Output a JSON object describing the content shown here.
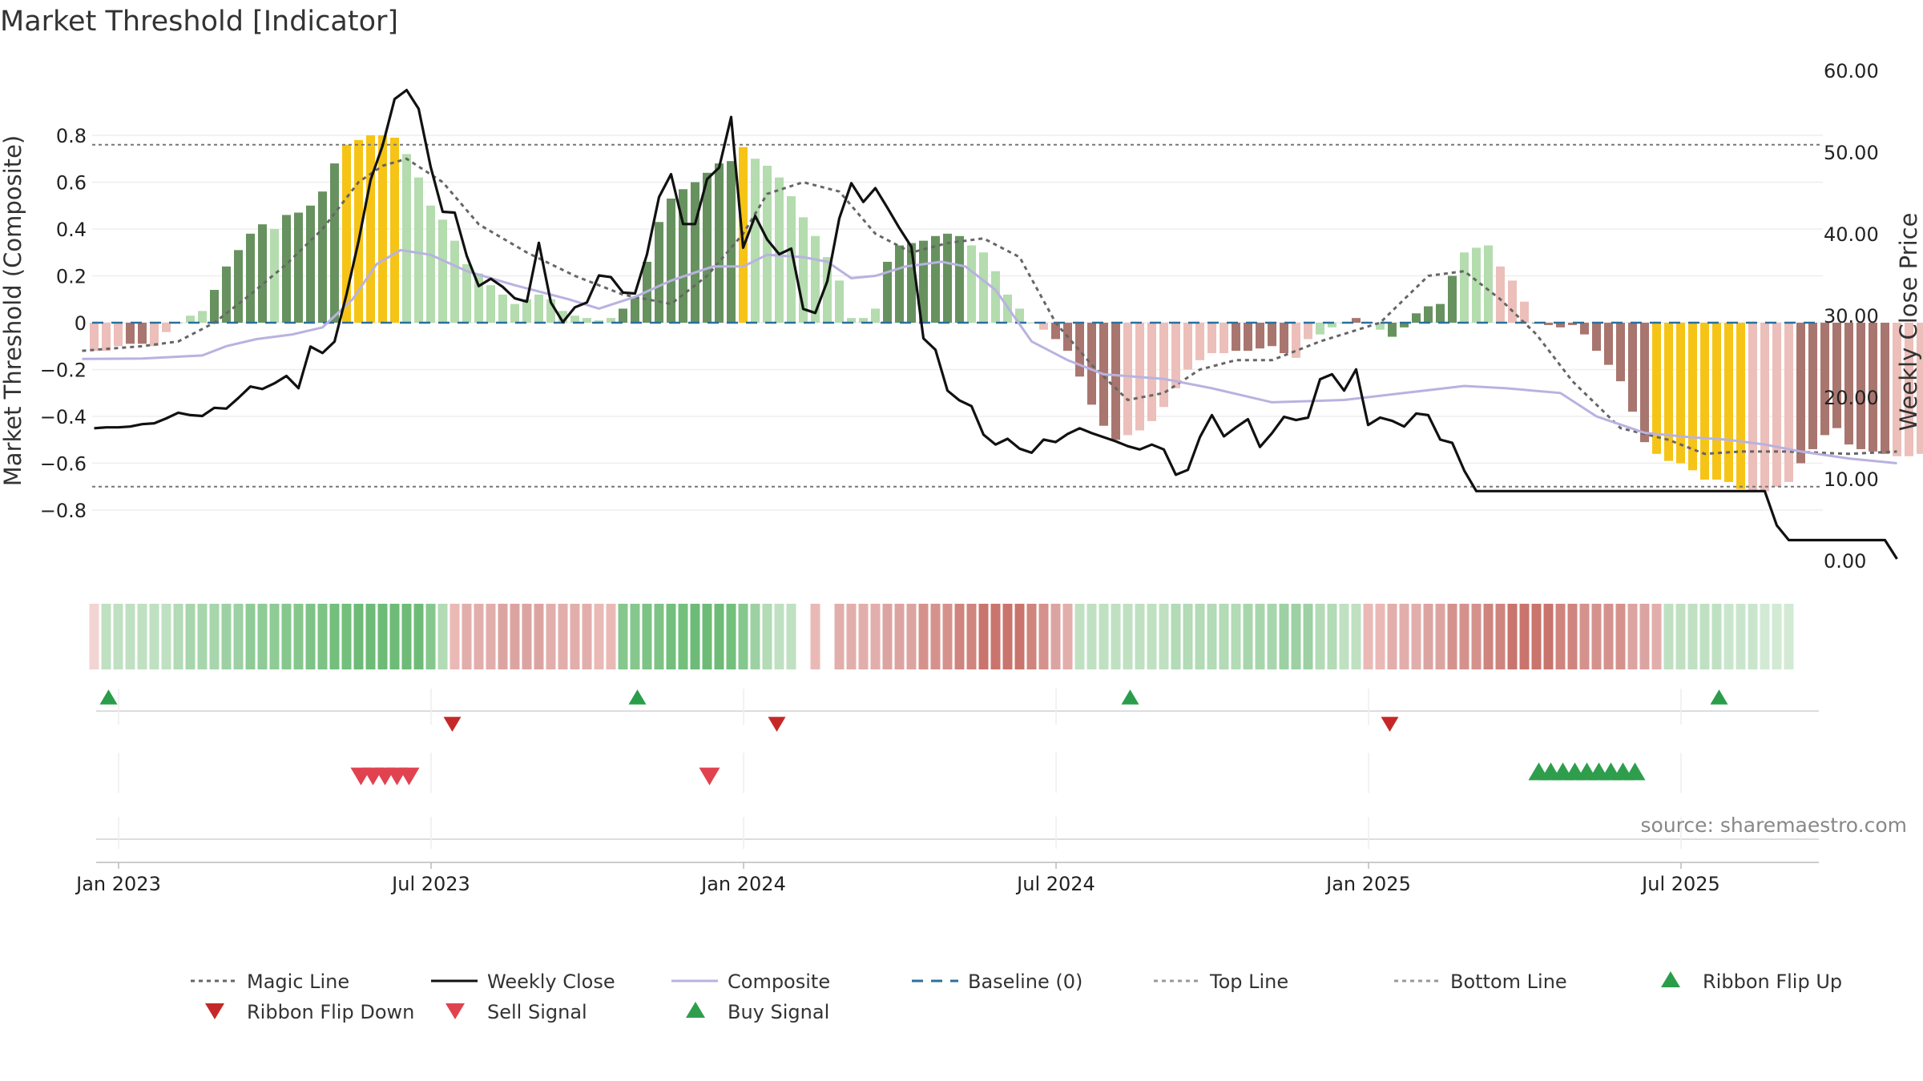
{
  "chart_data": {
    "type": "bar",
    "title": "Market Threshold [Indicator]",
    "ylabel": "Market Threshold (Composite)",
    "y2label": "Weekly Close Price",
    "source": "source: sharemaestro.com",
    "ylim": [
      -0.82,
      0.82
    ],
    "y2lim": [
      0,
      60
    ],
    "yticks": [
      "0.8",
      "0.6",
      "0.4",
      "0.2",
      "0",
      "−0.2",
      "−0.4",
      "−0.6",
      "−0.8"
    ],
    "yticks_values": [
      0.8,
      0.6,
      0.4,
      0.2,
      0,
      -0.2,
      -0.4,
      -0.6,
      -0.8
    ],
    "y2ticks": [
      "60.00",
      "50.00",
      "40.00",
      "30.00",
      "20.00",
      "10.00",
      "0.00"
    ],
    "y2ticks_values": [
      60,
      50,
      40,
      30,
      20,
      10,
      0
    ],
    "xticks": [
      "Jan 2023",
      "Jul 2023",
      "Jan 2024",
      "Jul 2024",
      "Jan 2025",
      "Jul 2025"
    ],
    "xticks_week": [
      1,
      27,
      53,
      79,
      105,
      131
    ],
    "top_line": 0.76,
    "bottom_line": -0.7,
    "baseline": 0,
    "composite_values": [
      -0.12,
      -0.12,
      -0.1,
      -0.09,
      -0.09,
      -0.1,
      -0.04,
      0,
      0.03,
      0.05,
      0.14,
      0.24,
      0.31,
      0.38,
      0.42,
      0.4,
      0.46,
      0.47,
      0.5,
      0.56,
      0.68,
      0.76,
      0.78,
      0.8,
      0.8,
      0.79,
      0.72,
      0.62,
      0.5,
      0.44,
      0.35,
      0.25,
      0.21,
      0.16,
      0.12,
      0.08,
      0.1,
      0.12,
      0.1,
      0.05,
      0.03,
      0.02,
      0.01,
      0.02,
      0.06,
      0.11,
      0.26,
      0.43,
      0.53,
      0.57,
      0.6,
      0.64,
      0.68,
      0.69,
      0.75,
      0.7,
      0.67,
      0.62,
      0.54,
      0.45,
      0.37,
      0.28,
      0.18,
      0.02,
      0.02,
      0.06,
      0.26,
      0.33,
      0.34,
      0.35,
      0.37,
      0.38,
      0.37,
      0.33,
      0.3,
      0.22,
      0.12,
      0.06,
      0.0,
      -0.03,
      -0.07,
      -0.12,
      -0.23,
      -0.35,
      -0.44,
      -0.5,
      -0.48,
      -0.46,
      -0.42,
      -0.36,
      -0.28,
      -0.2,
      -0.16,
      -0.13,
      -0.13,
      -0.12,
      -0.12,
      -0.11,
      -0.1,
      -0.13,
      -0.15,
      -0.07,
      -0.05,
      -0.02,
      0.0,
      0.02,
      0.0,
      -0.03,
      -0.06,
      -0.02,
      0.04,
      0.07,
      0.08,
      0.2,
      0.3,
      0.32,
      0.33,
      0.24,
      0.18,
      0.09,
      0.0,
      -0.01,
      -0.02,
      -0.01,
      -0.05,
      -0.12,
      -0.18,
      -0.25,
      -0.38,
      -0.51,
      -0.56,
      -0.59,
      -0.6,
      -0.63,
      -0.67,
      -0.67,
      -0.68,
      -0.71,
      -0.72,
      -0.72,
      -0.7,
      -0.68,
      -0.6,
      -0.54,
      -0.48,
      -0.45,
      -0.52,
      -0.54,
      -0.55,
      -0.56,
      -0.57,
      -0.57,
      -0.56,
      -0.56,
      -0.55,
      -0.55,
      -0.54
    ],
    "bar_class": [
      "ln",
      "ln",
      "ln",
      "ld",
      "ld",
      "ln",
      "ln",
      "gl",
      "gl",
      "gl",
      "gd",
      "gd",
      "gd",
      "gd",
      "gd",
      "gl",
      "gd",
      "gd",
      "gd",
      "gd",
      "gd",
      "y",
      "y",
      "y",
      "y",
      "y",
      "gl",
      "gl",
      "gl",
      "gl",
      "gl",
      "gl",
      "gl",
      "gl",
      "gl",
      "gl",
      "gl",
      "gl",
      "gl",
      "gl",
      "gl",
      "gl",
      "gl",
      "gl",
      "gd",
      "gd",
      "gd",
      "gd",
      "gd",
      "gd",
      "gd",
      "gd",
      "gd",
      "gd",
      "y",
      "gl",
      "gl",
      "gl",
      "gl",
      "gl",
      "gl",
      "gl",
      "gl",
      "gl",
      "gl",
      "gl",
      "gd",
      "gd",
      "gd",
      "gd",
      "gd",
      "gd",
      "gd",
      "gl",
      "gl",
      "gl",
      "gl",
      "gl",
      "gl",
      "ln",
      "ld",
      "ld",
      "ld",
      "ld",
      "ld",
      "ld",
      "ln",
      "ln",
      "ln",
      "ln",
      "ln",
      "ln",
      "ln",
      "ln",
      "ln",
      "ld",
      "ld",
      "ld",
      "ld",
      "ld",
      "ln",
      "ln",
      "gl",
      "gl",
      "gl",
      "ld",
      "ld",
      "gl",
      "gd",
      "gd",
      "gd",
      "gd",
      "gd",
      "gd",
      "gl",
      "gl",
      "gl",
      "ln",
      "ln",
      "ln",
      "ld",
      "ld",
      "ld",
      "ld",
      "ld",
      "ld",
      "ld",
      "ld",
      "ld",
      "ld",
      "y",
      "y",
      "y",
      "y",
      "y",
      "y",
      "y",
      "y",
      "ln",
      "ln",
      "ln",
      "ln",
      "ld",
      "ld",
      "ld",
      "ld",
      "ld",
      "ld",
      "ld",
      "ld",
      "ln",
      "ln",
      "ln",
      "ln"
    ],
    "weekly_close": [
      16.2,
      16.3,
      16.3,
      16.4,
      16.7,
      16.8,
      17.4,
      18.1,
      17.8,
      17.7,
      18.7,
      18.6,
      19.9,
      21.3,
      21.0,
      21.7,
      22.6,
      21.1,
      26.2,
      25.4,
      26.8,
      32.6,
      39.1,
      46.6,
      50.8,
      56.5,
      57.6,
      55.3,
      48.2,
      42.7,
      42.6,
      37.3,
      33.6,
      34.5,
      33.5,
      32.1,
      31.7,
      38.9,
      31.6,
      29.2,
      31.0,
      31.6,
      34.9,
      34.7,
      32.8,
      32.7,
      37.5,
      44.5,
      47.3,
      41.2,
      41.2,
      46.7,
      48.1,
      54.3,
      38.3,
      42.2,
      39.3,
      37.5,
      38.2,
      30.8,
      30.3,
      34.2,
      41.9,
      46.2,
      43.9,
      45.6,
      43.2,
      40.7,
      38.4,
      27.2,
      25.8,
      20.8,
      19.6,
      18.9,
      15.4,
      14.2,
      14.9,
      13.7,
      13.2,
      14.8,
      14.5,
      15.5,
      16.2,
      15.6,
      15.1,
      14.6,
      14.0,
      13.6,
      14.2,
      13.6,
      10.5,
      11.1,
      15.1,
      17.8,
      15.2,
      16.3,
      17.3,
      13.9,
      15.6,
      17.6,
      17.2,
      17.5,
      22.2,
      22.8,
      20.8,
      23.4,
      16.6,
      17.5,
      17.1,
      16.4,
      18.0,
      17.8,
      14.8,
      14.4,
      11.0,
      8.5,
      8.5,
      8.5,
      8.5,
      8.5,
      8.5,
      8.5,
      8.5,
      8.5,
      8.5,
      8.5,
      8.5,
      8.5,
      8.5,
      8.5,
      8.5,
      8.5,
      8.5,
      8.5,
      8.5,
      8.5,
      8.5,
      8.5,
      8.5,
      8.5,
      4.3,
      2.5,
      2.5,
      2.5,
      2.5,
      2.5,
      2.5,
      2.5,
      2.5,
      2.5,
      0.2
    ],
    "composite_line": [
      [
        -2,
        -0.155
      ],
      [
        8,
        -0.153
      ],
      [
        18,
        -0.14
      ],
      [
        22,
        -0.1
      ],
      [
        27,
        -0.07
      ],
      [
        33,
        -0.05
      ],
      [
        38,
        -0.02
      ],
      [
        43,
        0.1
      ],
      [
        47,
        0.25
      ],
      [
        51,
        0.31
      ],
      [
        56,
        0.29
      ],
      [
        62,
        0.22
      ],
      [
        70,
        0.16
      ],
      [
        79,
        0.1
      ],
      [
        84,
        0.06
      ],
      [
        90,
        0.11
      ],
      [
        96,
        0.18
      ],
      [
        103,
        0.24
      ],
      [
        108,
        0.24
      ],
      [
        112,
        0.29
      ],
      [
        118,
        0.28
      ],
      [
        122,
        0.26
      ],
      [
        126,
        0.19
      ],
      [
        130,
        0.2
      ],
      [
        135,
        0.24
      ],
      [
        141,
        0.26
      ],
      [
        145,
        0.24
      ],
      [
        150,
        0.14
      ],
      [
        156,
        -0.08
      ],
      [
        162,
        -0.16
      ],
      [
        168,
        -0.22
      ],
      [
        178,
        -0.24
      ],
      [
        186,
        -0.28
      ],
      [
        196,
        -0.34
      ],
      [
        208,
        -0.33
      ],
      [
        218,
        -0.3
      ],
      [
        228,
        -0.27
      ],
      [
        235,
        -0.28
      ],
      [
        244,
        -0.3
      ],
      [
        250,
        -0.4
      ],
      [
        258,
        -0.47
      ],
      [
        266,
        -0.49
      ],
      [
        272,
        -0.5
      ],
      [
        278,
        -0.52
      ],
      [
        284,
        -0.55
      ],
      [
        292,
        -0.58
      ],
      [
        300,
        -0.6
      ]
    ],
    "magic_line": [
      [
        -2,
        -0.12
      ],
      [
        8,
        -0.1
      ],
      [
        14,
        -0.08
      ],
      [
        20,
        0.0
      ],
      [
        26,
        0.12
      ],
      [
        32,
        0.25
      ],
      [
        38,
        0.4
      ],
      [
        44,
        0.6
      ],
      [
        48,
        0.67
      ],
      [
        52,
        0.7
      ],
      [
        58,
        0.6
      ],
      [
        64,
        0.42
      ],
      [
        72,
        0.3
      ],
      [
        80,
        0.2
      ],
      [
        88,
        0.12
      ],
      [
        96,
        0.08
      ],
      [
        102,
        0.2
      ],
      [
        108,
        0.38
      ],
      [
        112,
        0.55
      ],
      [
        118,
        0.6
      ],
      [
        124,
        0.56
      ],
      [
        130,
        0.38
      ],
      [
        136,
        0.3
      ],
      [
        142,
        0.34
      ],
      [
        148,
        0.36
      ],
      [
        154,
        0.28
      ],
      [
        160,
        0.0
      ],
      [
        166,
        -0.18
      ],
      [
        172,
        -0.33
      ],
      [
        178,
        -0.3
      ],
      [
        184,
        -0.2
      ],
      [
        190,
        -0.16
      ],
      [
        196,
        -0.16
      ],
      [
        204,
        -0.08
      ],
      [
        214,
        0.0
      ],
      [
        222,
        0.2
      ],
      [
        228,
        0.22
      ],
      [
        234,
        0.1
      ],
      [
        240,
        -0.05
      ],
      [
        246,
        -0.25
      ],
      [
        254,
        -0.45
      ],
      [
        262,
        -0.5
      ],
      [
        268,
        -0.56
      ],
      [
        274,
        -0.55
      ],
      [
        282,
        -0.55
      ],
      [
        292,
        -0.56
      ],
      [
        300,
        -0.55
      ]
    ],
    "ribbon_colors": [
      "#f2d4d2",
      "#bfe1c2",
      "#bfe1c2",
      "#bfe1c2",
      "#bfe1c2",
      "#bfe1c2",
      "#bfe1c2",
      "#b2dbb6",
      "#a8d6ac",
      "#a8d6ac",
      "#a8d6ac",
      "#9dd1a3",
      "#9dd1a3",
      "#8fcb96",
      "#8fcb96",
      "#8fcb96",
      "#86c78d",
      "#86c78d",
      "#7dc385",
      "#7dc385",
      "#73bf7c",
      "#73bf7c",
      "#6dbb77",
      "#6dbb77",
      "#6dbb77",
      "#6dbb77",
      "#6dbb77",
      "#6dbb77",
      "#86c78d",
      "#b2dbb6",
      "#eab9b6",
      "#e2aeab",
      "#e2aeab",
      "#e2aeab",
      "#dca4a1",
      "#dca4a1",
      "#dca4a1",
      "#dca4a1",
      "#e2aeab",
      "#e2aeab",
      "#e2aeab",
      "#e2aeab",
      "#eab9b6",
      "#eab9b6",
      "#86c78d",
      "#86c78d",
      "#7dc385",
      "#7dc385",
      "#73bf7c",
      "#73bf7c",
      "#6dbb77",
      "#6dbb77",
      "#6dbb77",
      "#73bf7c",
      "#86c78d",
      "#9dd1a3",
      "#b2dbb6",
      "#bfe1c2",
      "#bfe1c2",
      "#ffffff",
      "#eab9b6",
      "#ffffff",
      "#e2aeab",
      "#e2aeab",
      "#e2aeab",
      "#e2aeab",
      "#dca4a1",
      "#dca4a1",
      "#dca4a1",
      "#d5928d",
      "#d5928d",
      "#d5928d",
      "#cf847e",
      "#cf847e",
      "#c9746d",
      "#c9746d",
      "#c9746d",
      "#c9746d",
      "#cf847e",
      "#d5928d",
      "#dca4a1",
      "#e2aeab",
      "#bfe1c2",
      "#bfe1c2",
      "#bfe1c2",
      "#bfe1c2",
      "#bfe1c2",
      "#bfe1c2",
      "#bfe1c2",
      "#bfe1c2",
      "#b2dbb6",
      "#b2dbb6",
      "#b2dbb6",
      "#b2dbb6",
      "#b2dbb6",
      "#b2dbb6",
      "#a8d6ac",
      "#a8d6ac",
      "#a8d6ac",
      "#9dd1a3",
      "#9dd1a3",
      "#9dd1a3",
      "#b2dbb6",
      "#b2dbb6",
      "#bfe1c2",
      "#bfe1c2",
      "#eab9b6",
      "#eab9b6",
      "#e2aeab",
      "#e2aeab",
      "#e2aeab",
      "#dca4a1",
      "#dca4a1",
      "#d5928d",
      "#d5928d",
      "#d5928d",
      "#cf847e",
      "#cf847e",
      "#c9746d",
      "#c9746d",
      "#c9746d",
      "#c9746d",
      "#cf847e",
      "#cf847e",
      "#d5928d",
      "#d5928d",
      "#d5928d",
      "#d5928d",
      "#dca4a1",
      "#dca4a1",
      "#e2aeab",
      "#bfe1c2",
      "#bfe1c2",
      "#bfe1c2",
      "#bfe1c2",
      "#bfe1c2",
      "#c9e6cc",
      "#c9e6cc",
      "#c9e6cc",
      "#d2ead4",
      "#d2ead4",
      "#d2ead4"
    ],
    "ribbon_flip_up_weeks": [
      0,
      44,
      85,
      134
    ],
    "ribbon_flip_down_weeks": [
      29,
      56,
      107
    ],
    "sell_signal_weeks": [
      22,
      23,
      24,
      25,
      26,
      51
    ],
    "buy_signal_weeks": [
      119,
      120,
      121,
      122,
      123,
      124,
      125,
      126,
      127
    ],
    "legend": [
      {
        "label": "Magic Line",
        "style": "dotted",
        "color": "#666666"
      },
      {
        "label": "Weekly Close",
        "style": "solid",
        "color": "#111111"
      },
      {
        "label": "Composite",
        "style": "solid",
        "color": "#b9b2e0"
      },
      {
        "label": "Baseline (0)",
        "style": "dashed",
        "color": "#2a6f9b"
      },
      {
        "label": "Top Line",
        "style": "dotted",
        "color": "#999999"
      },
      {
        "label": "Bottom Line",
        "style": "dotted",
        "color": "#999999"
      },
      {
        "label": "Ribbon Flip Up",
        "style": "triangle-up",
        "color": "#2a9d4a"
      },
      {
        "label": "Ribbon Flip Down",
        "style": "triangle-down",
        "color": "#c62828"
      },
      {
        "label": "Sell Signal",
        "style": "triangle-down",
        "color": "#e0434f"
      },
      {
        "label": "Buy Signal",
        "style": "triangle-up",
        "color": "#2e9e4d"
      }
    ],
    "colors": {
      "y": "#f6c416",
      "gd": "#67925f",
      "gl": "#b4dcae",
      "ld": "#a8766f",
      "ln": "#ecbfba"
    },
    "legend_placement": "bottom-center",
    "grid": true
  }
}
